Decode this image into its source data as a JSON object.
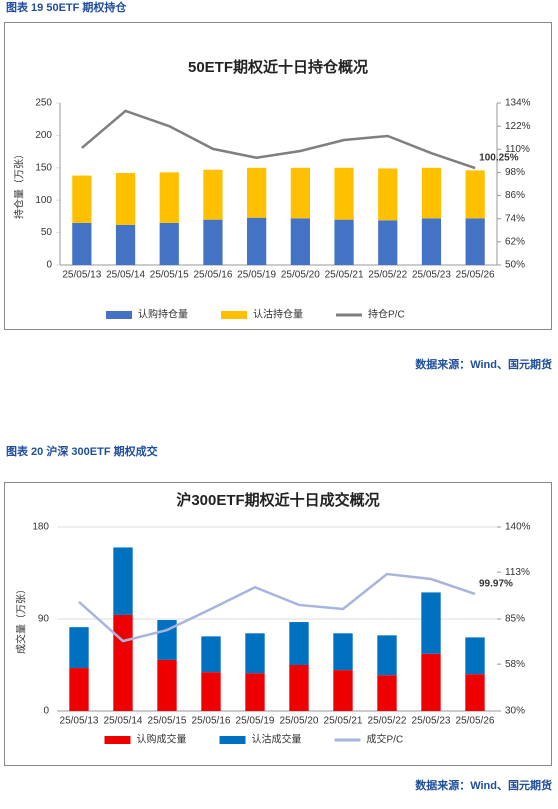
{
  "chart_data": [
    {
      "type": "bar",
      "stacked": true,
      "caption": "图表 19 50ETF 期权持仓",
      "title": "50ETF期权近十日持仓概况",
      "y_label": "持仓量（万张）",
      "source": "数据来源：Wind、国元期货",
      "categories": [
        "25/05/13",
        "25/05/14",
        "25/05/15",
        "25/05/16",
        "25/05/19",
        "25/05/20",
        "25/05/21",
        "25/05/22",
        "25/05/23",
        "25/05/26"
      ],
      "series": [
        {
          "name": "认购持仓量",
          "color": "#4472c4",
          "values": [
            65,
            62,
            65,
            70,
            73,
            72,
            70,
            69,
            72,
            72
          ]
        },
        {
          "name": "认沽持仓量",
          "color": "#ffc000",
          "values": [
            73,
            80,
            78,
            77,
            77,
            78,
            80,
            80,
            78,
            74
          ]
        },
        {
          "name": "持仓P/C",
          "color": "#7f7f7f",
          "type": "line",
          "axis": "y2",
          "values": [
            110.7,
            129.9,
            122,
            110.2,
            105.6,
            109.1,
            114.8,
            116.9,
            108,
            100.25
          ],
          "value_labels": [
            null,
            null,
            null,
            null,
            null,
            null,
            null,
            null,
            null,
            "100.25%"
          ]
        }
      ],
      "ylim": [
        0,
        250
      ],
      "yticks": [
        0,
        50,
        100,
        150,
        200,
        250
      ],
      "y2lim": [
        50,
        134
      ],
      "y2ticks": [
        {
          "value": 50,
          "label": "50%"
        },
        {
          "value": 62,
          "label": "62%"
        },
        {
          "value": 74,
          "label": "74%"
        },
        {
          "value": 86,
          "label": "86%"
        },
        {
          "value": 98,
          "label": "98%"
        },
        {
          "value": 110,
          "label": "110%"
        },
        {
          "value": 122,
          "label": "122%"
        },
        {
          "value": 134,
          "label": "134%"
        }
      ],
      "grid": false,
      "legend": "bottom"
    },
    {
      "type": "bar",
      "stacked": true,
      "caption": "图表 20 沪深 300ETF 期权成交",
      "title": "沪300ETF期权近十日成交概况",
      "y_label": "成交量（万张）",
      "source": "数据来源：Wind、国元期货",
      "categories": [
        "25/05/13",
        "25/05/14",
        "25/05/15",
        "25/05/16",
        "25/05/19",
        "25/05/20",
        "25/05/21",
        "25/05/22",
        "25/05/23",
        "25/05/26"
      ],
      "series": [
        {
          "name": "认购成交量",
          "color": "#ee0000",
          "values": [
            42,
            94,
            50,
            38,
            37,
            45,
            40,
            35,
            56,
            36
          ]
        },
        {
          "name": "认沽成交量",
          "color": "#0070c0",
          "values": [
            40,
            66,
            39,
            35,
            39,
            42,
            36,
            39,
            60,
            36
          ]
        },
        {
          "name": "成交P/C",
          "color": "#a9b4dc",
          "type": "line",
          "axis": "y2",
          "values": [
            95.2,
            71.8,
            78.4,
            91,
            104,
            93.4,
            91,
            111.9,
            108.9,
            99.97
          ],
          "value_labels": [
            null,
            null,
            null,
            null,
            null,
            null,
            null,
            null,
            null,
            "99.97%"
          ]
        }
      ],
      "ylim": [
        0,
        180
      ],
      "yticks": [
        0,
        90,
        180
      ],
      "y2lim": [
        30,
        140
      ],
      "y2ticks": [
        {
          "value": 30,
          "label": "30%"
        },
        {
          "value": 58,
          "label": "58%"
        },
        {
          "value": 85,
          "label": "85%"
        },
        {
          "value": 113,
          "label": "113%"
        },
        {
          "value": 140,
          "label": "140%"
        }
      ],
      "grid": true,
      "legend": "bottom"
    }
  ]
}
